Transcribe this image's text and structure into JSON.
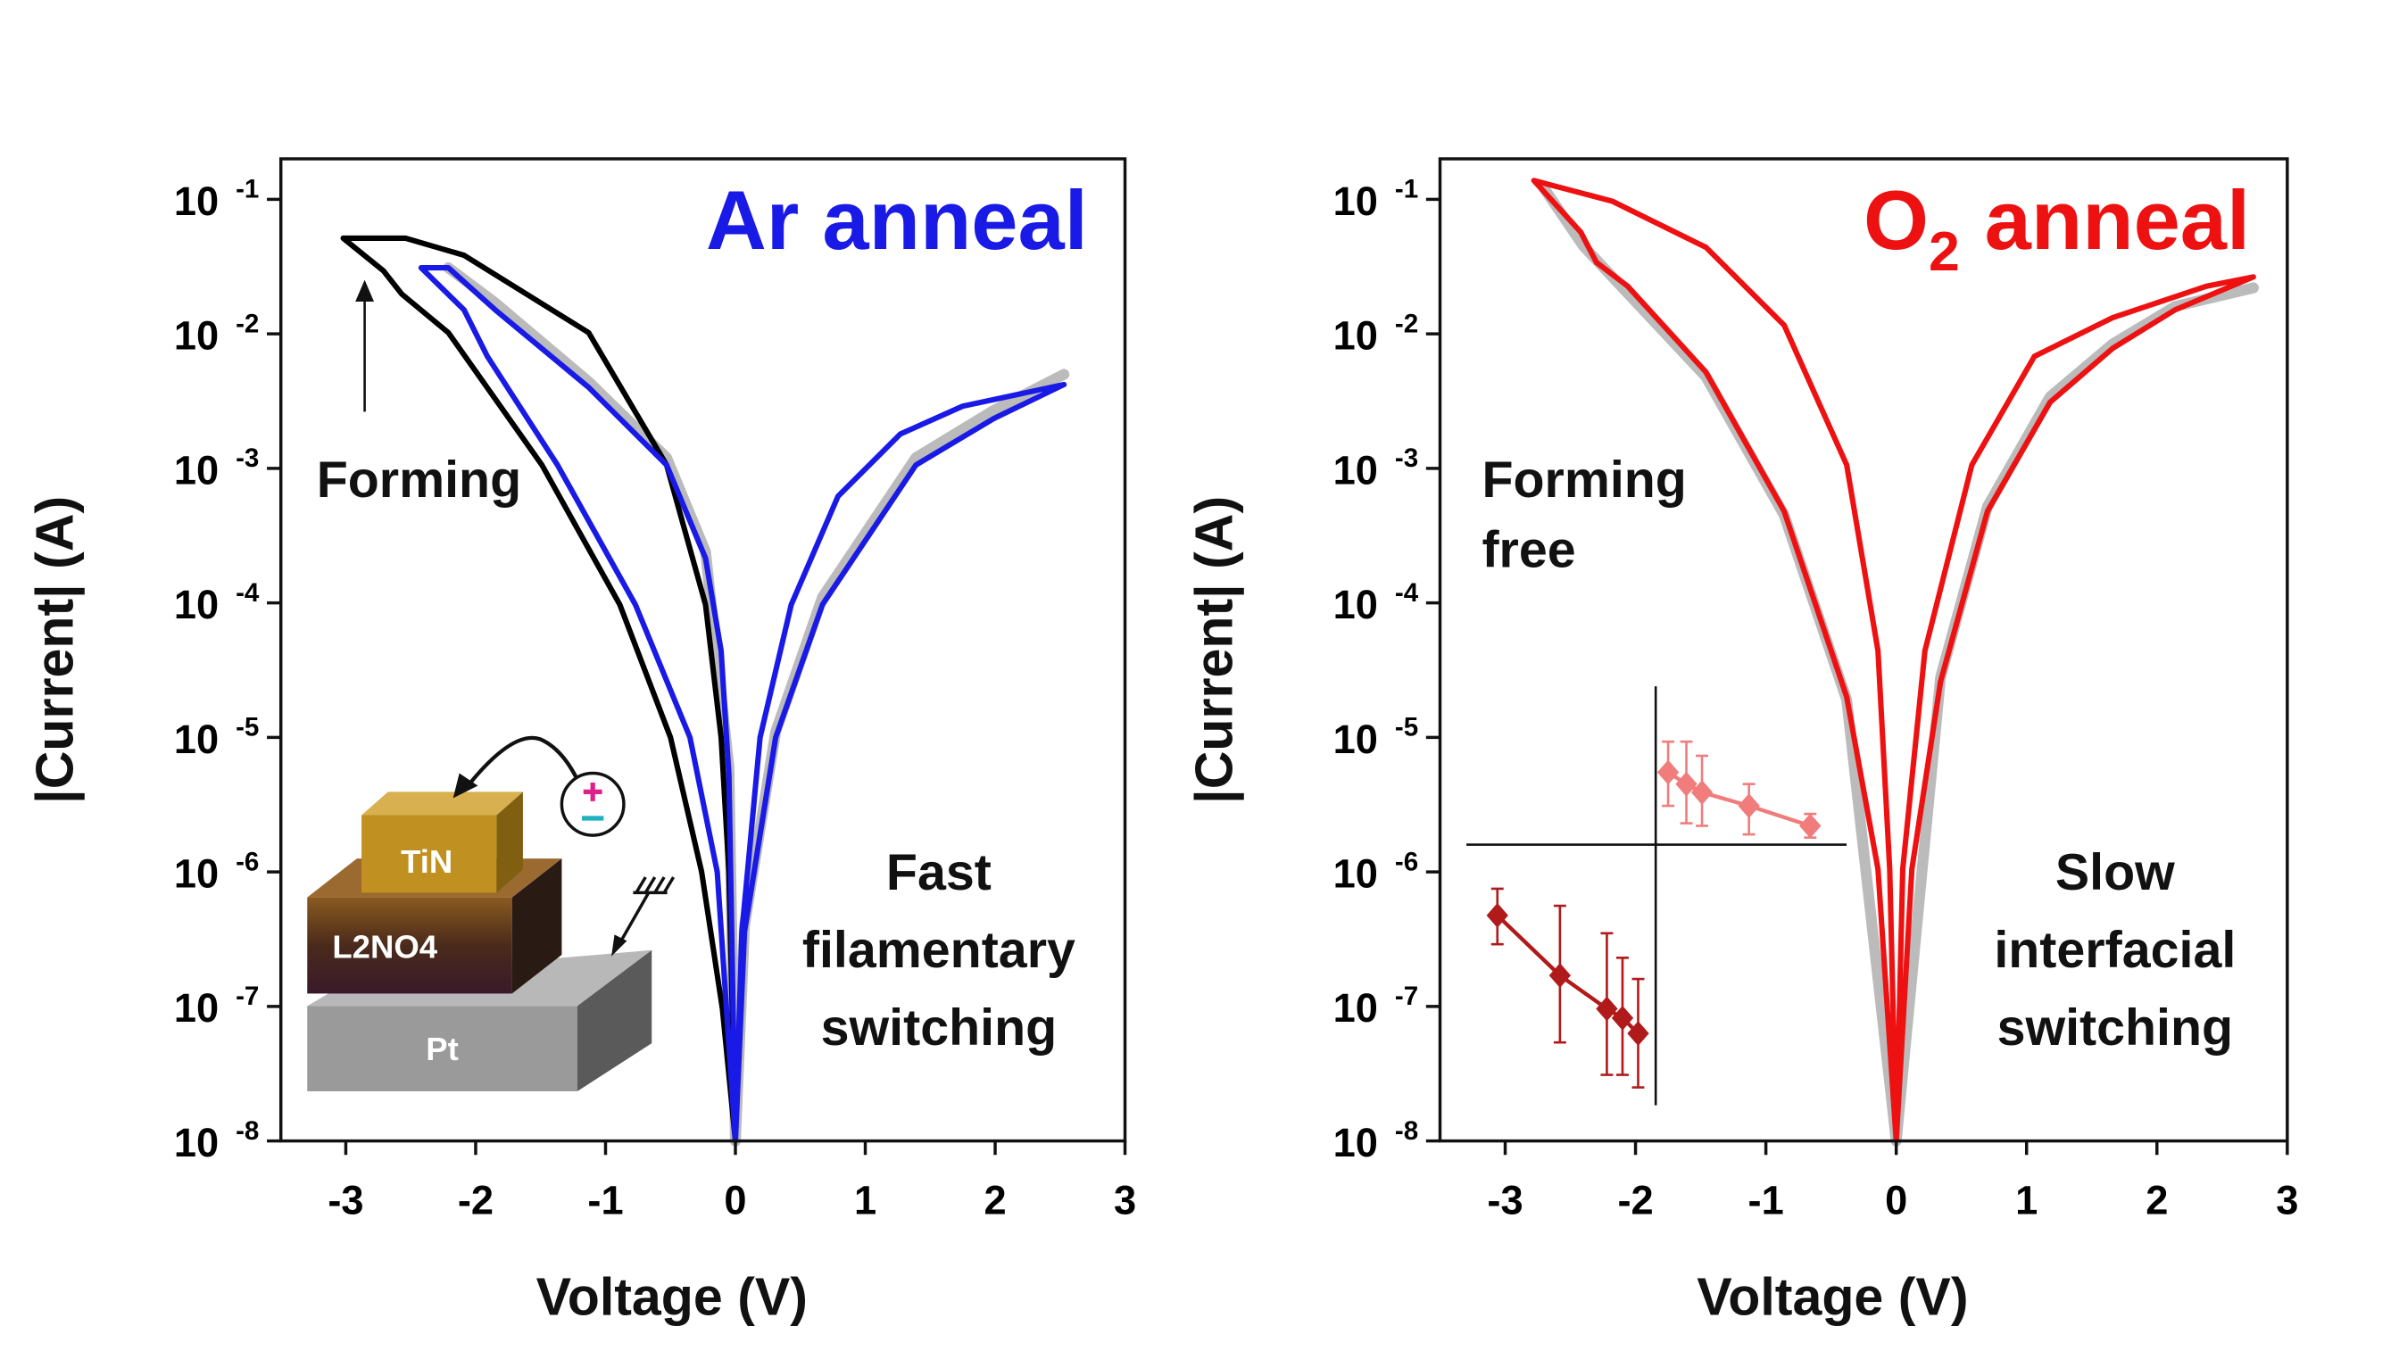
{
  "chart_data": [
    {
      "type": "line",
      "title": "Ar anneal",
      "title_color": "#1a1ae6",
      "xlabel": "Voltage (V)",
      "ylabel": "|Current| (A)",
      "xlim": [
        -3.5,
        3
      ],
      "xticks": [
        -3,
        -2,
        -1,
        0,
        1,
        2,
        3
      ],
      "ylim": [
        1e-08,
        0.2
      ],
      "log_y": true,
      "yticks": [
        {
          "value": 1e-08,
          "label": "10",
          "sup": "-8"
        },
        {
          "value": 1e-07,
          "label": "10",
          "sup": "-7"
        },
        {
          "value": 1e-06,
          "label": "10",
          "sup": "-6"
        },
        {
          "value": 1e-05,
          "label": "10",
          "sup": "-5"
        },
        {
          "value": 0.0001,
          "label": "10",
          "sup": "-4"
        },
        {
          "value": 0.001,
          "label": "10",
          "sup": "-3"
        },
        {
          "value": 0.01,
          "label": "10",
          "sup": "-2"
        },
        {
          "value": 0.1,
          "label": "10",
          "sup": "-1"
        }
      ],
      "annotations": [
        "Forming",
        "Fast",
        "filamentary",
        "switching"
      ],
      "inset_labels": [
        "TiN",
        "L2NO4",
        "Pt"
      ],
      "series": [
        {
          "color": "#bbbbbb",
          "width": 7,
          "x": [
            -2.21,
            -1.85,
            -1.13,
            -0.53,
            -0.23,
            -0.05,
            0,
            0.07,
            0.31,
            0.67,
            1.39,
            1.99,
            2.53
          ],
          "values": [
            0.031,
            0.017,
            0.0044,
            0.0012,
            0.00024,
            6e-06,
            1e-08,
            4e-07,
            1.1e-05,
            0.00011,
            0.0012,
            0.0027,
            0.005
          ]
        },
        {
          "color": "#000000",
          "width": 3.5,
          "x": [
            0,
            -0.1,
            -0.26,
            -0.5,
            -0.89,
            -1.49,
            -2.21,
            -2.57,
            -2.71,
            -3.02,
            -2.54,
            -2.09,
            -1.13,
            -0.53,
            -0.23,
            -0.11,
            -0.05,
            0
          ],
          "values": [
            1e-08,
            9.6e-08,
            1e-06,
            1e-05,
            9.7e-05,
            0.00106,
            0.0102,
            0.0198,
            0.0294,
            0.0514,
            0.0514,
            0.0384,
            0.0102,
            0.00106,
            9.7e-05,
            1e-05,
            1e-06,
            1e-08
          ]
        },
        {
          "color": "#1a1ae6",
          "width": 3.5,
          "x": [
            0,
            -0.14,
            -0.35,
            -0.77,
            -1.37,
            -1.91,
            -2.09,
            -2.42,
            -2.21,
            -1.85,
            -1.13,
            -0.53,
            -0.23,
            -0.11,
            -0.05,
            0,
            0.05,
            0.19,
            0.43,
            0.79,
            1.27,
            1.75,
            2.53,
            1.99,
            1.39,
            0.67,
            0.31,
            0.07,
            0
          ],
          "values": [
            1e-08,
            1e-06,
            1e-05,
            9.7e-05,
            0.00106,
            0.0068,
            0.0151,
            0.031,
            0.031,
            0.0151,
            0.004,
            0.00106,
            0.000215,
            4.4e-05,
            5.2e-06,
            1e-08,
            3.6e-07,
            1e-05,
            9.7e-05,
            0.00062,
            0.0018,
            0.0029,
            0.0042,
            0.00235,
            0.00106,
            9.7e-05,
            1e-05,
            3.6e-07,
            1e-08
          ]
        }
      ]
    },
    {
      "type": "line",
      "title": "O",
      "title_subscript": "2",
      "title_rest": "anneal",
      "title_color": "#ee1111",
      "xlabel": "Voltage (V)",
      "ylabel": "|Current| (A)",
      "xlim": [
        -3.5,
        3
      ],
      "xticks": [
        -3,
        -2,
        -1,
        0,
        1,
        2,
        3
      ],
      "ylim": [
        1e-08,
        0.2
      ],
      "log_y": true,
      "yticks": [
        {
          "value": 1e-08,
          "label": "10",
          "sup": "-8"
        },
        {
          "value": 1e-07,
          "label": "10",
          "sup": "-7"
        },
        {
          "value": 1e-06,
          "label": "10",
          "sup": "-6"
        },
        {
          "value": 1e-05,
          "label": "10",
          "sup": "-5"
        },
        {
          "value": 0.0001,
          "label": "10",
          "sup": "-4"
        },
        {
          "value": 0.001,
          "label": "10",
          "sup": "-3"
        },
        {
          "value": 0.01,
          "label": "10",
          "sup": "-2"
        },
        {
          "value": 0.1,
          "label": "10",
          "sup": "-1"
        }
      ],
      "annotations": [
        "Forming",
        "free",
        "Slow",
        "interfacial",
        "switching"
      ],
      "series": [
        {
          "color": "#bbbbbb",
          "width": 7,
          "x": [
            -2.7,
            -2.4,
            -1.46,
            -0.86,
            -0.38,
            0,
            0.34,
            0.7,
            1.18,
            1.66,
            2.14,
            2.74
          ],
          "values": [
            0.12,
            0.045,
            0.0048,
            0.00045,
            1.9e-05,
            1e-08,
            2.8e-05,
            0.00052,
            0.0034,
            0.0084,
            0.016,
            0.022
          ]
        },
        {
          "color": "#ee1111",
          "width": 3.5,
          "x": [
            0,
            -0.14,
            -0.38,
            -0.86,
            -1.46,
            -2.06,
            -2.3,
            -2.42,
            -2.78,
            -2.18,
            -1.46,
            -0.86,
            -0.38,
            -0.14,
            -0.05,
            0,
            0.05,
            0.22,
            0.58,
            1.06,
            1.66,
            2.38,
            2.74,
            2.14,
            1.66,
            1.18,
            0.7,
            0.34,
            0.12,
            0
          ],
          "values": [
            1e-08,
            1.05e-06,
            2e-05,
            0.00048,
            0.0052,
            0.0226,
            0.034,
            0.057,
            0.138,
            0.097,
            0.044,
            0.0116,
            0.00106,
            4.4e-05,
            1.05e-06,
            1e-08,
            1.05e-06,
            4.4e-05,
            0.00106,
            0.0068,
            0.0132,
            0.0226,
            0.0265,
            0.0151,
            0.0078,
            0.0031,
            0.00048,
            2.6e-05,
            1.05e-06,
            1e-08
          ]
        },
        {
          "color": "#b01a1a",
          "width": 2.5,
          "markers": true,
          "x": [
            -3.06,
            -2.58,
            -2.22,
            -2.1,
            -1.98
          ],
          "values": [
            4.75e-07,
            1.7e-07,
            9.6e-08,
            8.2e-08,
            6.3e-08
          ],
          "error_low": [
            2.9e-07,
            5.4e-08,
            3.1e-08,
            3.1e-08,
            2.5e-08
          ],
          "error_high": [
            7.5e-07,
            5.6e-07,
            3.5e-07,
            2.3e-07,
            1.6e-07
          ]
        },
        {
          "color": "#f07c7c",
          "width": 2.5,
          "markers": true,
          "x": [
            -1.75,
            -1.61,
            -1.49,
            -1.13,
            -0.66
          ],
          "values": [
            5.5e-06,
            4.5e-06,
            3.9e-06,
            3.1e-06,
            2.2e-06
          ],
          "error_low": [
            3.1e-06,
            2.3e-06,
            2.2e-06,
            1.9e-06,
            1.8e-06
          ],
          "error_high": [
            9.3e-06,
            9.3e-06,
            7.3e-06,
            4.5e-06,
            2.7e-06
          ]
        }
      ]
    }
  ]
}
